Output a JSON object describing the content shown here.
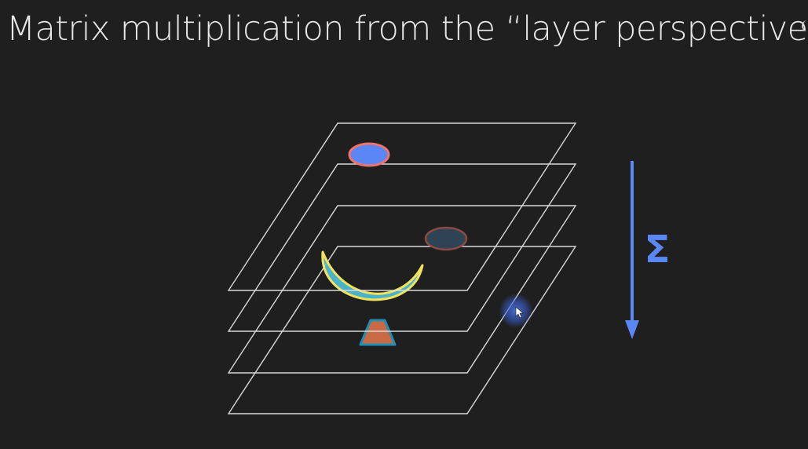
{
  "slide": {
    "title": "Matrix multiplication from the “layer perspective”"
  },
  "diagram": {
    "sum_symbol": "Σ",
    "layer_count": 4,
    "colors": {
      "background": "#1f1f1f",
      "layer_outline": "#d9d9d9",
      "arrow": "#5b86f5",
      "ellipse_fill": "#5b86f5",
      "ellipse_outline": "#f0736b",
      "faded_ellipse_fill": "#2f4355",
      "faded_ellipse_outline": "#8a4a45",
      "crescent_fill": "#4ec3df",
      "crescent_outline": "#f4e35a",
      "triangle_fill": "#c96a45",
      "triangle_outline": "#1f8fb3",
      "cursor_glow": "#3b5fcf"
    },
    "icons": [
      "down-arrow-icon",
      "mouse-cursor-icon"
    ]
  }
}
